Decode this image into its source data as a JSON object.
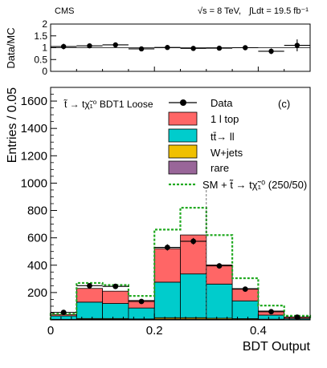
{
  "header": {
    "experiment": "CMS",
    "energy": "√s = 8 TeV,",
    "lumi": "∫Ldt = 19.5 fb⁻¹"
  },
  "chart_data": [
    {
      "type": "scatter",
      "panel": "ratio",
      "ylabel": "Data/MC",
      "ylim": [
        0,
        2
      ],
      "yticks": [
        "0",
        "0.5",
        "1",
        "1.5",
        "2"
      ],
      "x": [
        0.025,
        0.075,
        0.125,
        0.175,
        0.225,
        0.275,
        0.325,
        0.375,
        0.425,
        0.475
      ],
      "values": [
        1.05,
        1.08,
        1.12,
        0.95,
        1.01,
        0.97,
        0.98,
        1.0,
        0.85,
        1.1
      ],
      "xerr": 0.025,
      "yerr": [
        0.12,
        0.07,
        0.07,
        0.09,
        0.05,
        0.05,
        0.06,
        0.07,
        0.12,
        0.25
      ],
      "xlim": [
        0,
        0.5
      ]
    },
    {
      "type": "bar",
      "panel": "main",
      "title": "t̃ → tχ̃₁⁰ BDT1 Loose",
      "label": "(c)",
      "xlabel": "BDT Output",
      "ylabel": "Entries / 0.05",
      "xlim": [
        0,
        0.5
      ],
      "ylim": [
        0,
        1700
      ],
      "xticks": [
        "0",
        "0.2",
        "0.4"
      ],
      "yticks": [
        "200",
        "400",
        "600",
        "800",
        "1000",
        "1200",
        "1400",
        "1600"
      ],
      "bin_edges": [
        0,
        0.05,
        0.1,
        0.15,
        0.2,
        0.25,
        0.3,
        0.35,
        0.4,
        0.45,
        0.5
      ],
      "cut_line": 0.3,
      "series": [
        {
          "name": "rare",
          "color": "#996699",
          "values": [
            2,
            4,
            4,
            3,
            6,
            6,
            4,
            3,
            2,
            1
          ]
        },
        {
          "name": "W+jets",
          "color": "#f0c000",
          "values": [
            2,
            6,
            6,
            4,
            10,
            10,
            8,
            6,
            3,
            1
          ]
        },
        {
          "name": "tt̄→ ll",
          "color": "#00cccc",
          "values": [
            25,
            120,
            110,
            80,
            260,
            320,
            250,
            130,
            30,
            8
          ]
        },
        {
          "name": "1 l top",
          "color": "#ff6666",
          "values": [
            10,
            100,
            90,
            55,
            245,
            285,
            140,
            90,
            30,
            10
          ]
        }
      ],
      "data": {
        "name": "Data",
        "values": [
          55,
          250,
          245,
          135,
          530,
          575,
          395,
          225,
          60,
          20
        ],
        "errors": [
          8,
          16,
          16,
          12,
          23,
          24,
          20,
          15,
          8,
          5
        ]
      },
      "signal": {
        "name": "SM + t̃ → tχ̃₁⁰ (250/50)",
        "color": "#22aa22",
        "values": [
          45,
          270,
          255,
          175,
          660,
          820,
          620,
          305,
          105,
          30
        ]
      },
      "legend": {
        "placement": "top-right",
        "entries": [
          "Data",
          "1 l top",
          "tt̄→ ll",
          "W+jets",
          "rare",
          "SM + t̃ → tχ̃₁⁰ (250/50)"
        ]
      }
    }
  ]
}
